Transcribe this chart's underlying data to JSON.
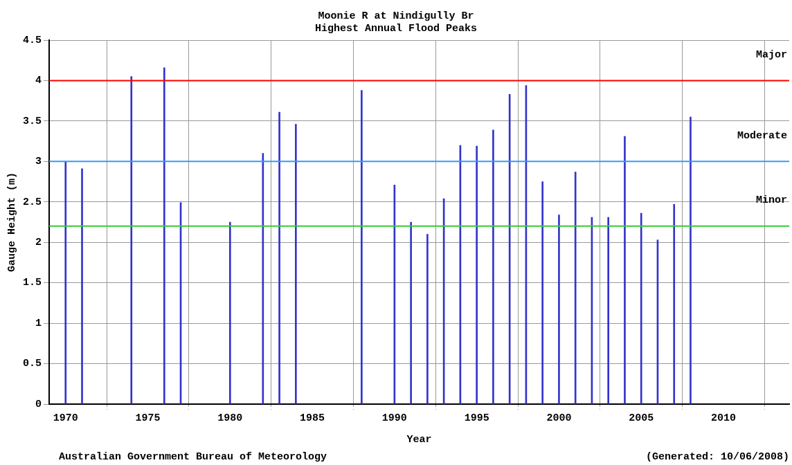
{
  "chart_data": {
    "type": "bar",
    "title": "Moonie R at Nindigully Br",
    "subtitle": "Highest Annual Flood Peaks",
    "xlabel": "Year",
    "ylabel": "Gauge Height (m)",
    "x": [
      1970,
      1971,
      1974,
      1976,
      1977,
      1980,
      1982,
      1983,
      1984,
      1988,
      1990,
      1991,
      1992,
      1993,
      1994,
      1995,
      1996,
      1997,
      1998,
      1999,
      2000,
      2001,
      2002,
      2003,
      2004,
      2005,
      2006,
      2007,
      2008
    ],
    "values": [
      3.0,
      2.91,
      4.05,
      4.16,
      2.49,
      2.25,
      3.1,
      3.61,
      3.46,
      3.88,
      2.71,
      2.25,
      2.1,
      2.54,
      3.2,
      3.19,
      3.39,
      3.83,
      3.94,
      2.75,
      2.34,
      2.87,
      2.31,
      2.31,
      3.31,
      2.36,
      2.03,
      2.47,
      3.55
    ],
    "color": "#3333cc",
    "xlim": [
      1969,
      2014
    ],
    "xticks": [
      1970,
      1975,
      1980,
      1985,
      1990,
      1995,
      2000,
      2005,
      2010
    ],
    "ylim": [
      0,
      4.5
    ],
    "yticks": [
      0,
      0.5,
      1,
      1.5,
      2,
      2.5,
      3,
      3.5,
      4,
      4.5
    ],
    "grid": true,
    "ref_lines": [
      {
        "axis": "y",
        "value": 4,
        "label": "Major",
        "color": "#ff0000"
      },
      {
        "axis": "y",
        "value": 3,
        "label": "Moderate",
        "color": "#3399ff"
      },
      {
        "axis": "y",
        "value": 2.2,
        "label": "Minor",
        "color": "#33cc33"
      }
    ],
    "annotations": [
      "Australian Government Bureau of Meteorology",
      "(Generated: 10/06/2008)"
    ]
  }
}
